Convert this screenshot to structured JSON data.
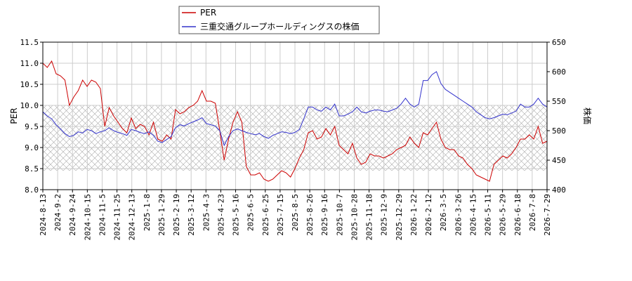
{
  "chart_data": {
    "type": "line",
    "xlabel": "",
    "y_left_label": "PER",
    "y_right_label": "株価",
    "y_left_lim": [
      8.0,
      11.5
    ],
    "y_right_lim": [
      400,
      650
    ],
    "y_left_ticks": [
      "8.0",
      "8.5",
      "9.0",
      "9.5",
      "10.0",
      "10.5",
      "11.0",
      "11.5"
    ],
    "y_right_ticks": [
      "400",
      "450",
      "500",
      "550",
      "600",
      "650"
    ],
    "x_ticks": [
      "2024-8-13",
      "2024-9-2",
      "2024-9-24",
      "2024-10-15",
      "2024-11-5",
      "2024-11-25",
      "2024-12-13",
      "2025-1-8",
      "2025-1-29",
      "2025-2-19",
      "2025-3-12",
      "2025-4-3",
      "2025-4-23",
      "2025-5-16",
      "2025-6-5",
      "2025-6-25",
      "2025-7-15",
      "2025-8-5",
      "2025-8-26",
      "2025-9-16",
      "2025-10-7",
      "2025-10-28",
      "2025-11-18",
      "2025-12-9",
      "2025-12-29",
      "2026-1-22",
      "2026-2-12",
      "2026-3-5",
      "2026-3-26",
      "2026-4-15",
      "2026-5-11",
      "2026-5-29",
      "2026-6-18",
      "2026-7-8",
      "2026-7-29"
    ],
    "grid": true,
    "shaded_band_left": [
      8.45,
      10.0
    ],
    "legend_position": "top-center",
    "series": [
      {
        "name": "PER",
        "axis": "left",
        "color": "#cc0000",
        "points": [
          [
            0,
            11.0
          ],
          [
            1,
            10.9
          ],
          [
            2,
            11.05
          ],
          [
            3,
            10.75
          ],
          [
            4,
            10.7
          ],
          [
            5,
            10.6
          ],
          [
            6,
            10.0
          ],
          [
            7,
            10.2
          ],
          [
            8,
            10.35
          ],
          [
            9,
            10.6
          ],
          [
            10,
            10.45
          ],
          [
            11,
            10.6
          ],
          [
            12,
            10.55
          ],
          [
            13,
            10.4
          ],
          [
            14,
            9.5
          ],
          [
            15,
            9.95
          ],
          [
            16,
            9.75
          ],
          [
            17,
            9.6
          ],
          [
            18,
            9.45
          ],
          [
            19,
            9.35
          ],
          [
            20,
            9.7
          ],
          [
            21,
            9.45
          ],
          [
            22,
            9.55
          ],
          [
            23,
            9.5
          ],
          [
            24,
            9.3
          ],
          [
            25,
            9.6
          ],
          [
            26,
            9.2
          ],
          [
            27,
            9.15
          ],
          [
            28,
            9.3
          ],
          [
            29,
            9.2
          ],
          [
            30,
            9.9
          ],
          [
            31,
            9.8
          ],
          [
            32,
            9.85
          ],
          [
            33,
            9.95
          ],
          [
            34,
            10.0
          ],
          [
            35,
            10.1
          ],
          [
            36,
            10.35
          ],
          [
            37,
            10.1
          ],
          [
            38,
            10.1
          ],
          [
            39,
            10.05
          ],
          [
            40,
            9.4
          ],
          [
            41,
            8.7
          ],
          [
            42,
            9.2
          ],
          [
            43,
            9.6
          ],
          [
            44,
            9.85
          ],
          [
            45,
            9.6
          ],
          [
            46,
            8.55
          ],
          [
            47,
            8.35
          ],
          [
            48,
            8.35
          ],
          [
            49,
            8.4
          ],
          [
            50,
            8.25
          ],
          [
            51,
            8.2
          ],
          [
            52,
            8.25
          ],
          [
            53,
            8.35
          ],
          [
            54,
            8.45
          ],
          [
            55,
            8.4
          ],
          [
            56,
            8.3
          ],
          [
            57,
            8.5
          ],
          [
            58,
            8.75
          ],
          [
            59,
            8.95
          ],
          [
            60,
            9.35
          ],
          [
            61,
            9.4
          ],
          [
            62,
            9.2
          ],
          [
            63,
            9.25
          ],
          [
            64,
            9.45
          ],
          [
            65,
            9.3
          ],
          [
            66,
            9.5
          ],
          [
            67,
            9.05
          ],
          [
            68,
            8.95
          ],
          [
            69,
            8.85
          ],
          [
            70,
            9.1
          ],
          [
            71,
            8.75
          ],
          [
            72,
            8.6
          ],
          [
            73,
            8.65
          ],
          [
            74,
            8.85
          ],
          [
            75,
            8.8
          ],
          [
            76,
            8.8
          ],
          [
            77,
            8.75
          ],
          [
            78,
            8.8
          ],
          [
            79,
            8.85
          ],
          [
            80,
            8.95
          ],
          [
            81,
            9.0
          ],
          [
            82,
            9.05
          ],
          [
            83,
            9.25
          ],
          [
            84,
            9.1
          ],
          [
            85,
            9.0
          ],
          [
            86,
            9.35
          ],
          [
            87,
            9.3
          ],
          [
            88,
            9.45
          ],
          [
            89,
            9.6
          ],
          [
            90,
            9.2
          ],
          [
            91,
            9.0
          ],
          [
            92,
            8.95
          ],
          [
            93,
            8.95
          ],
          [
            94,
            8.8
          ],
          [
            95,
            8.75
          ],
          [
            96,
            8.6
          ],
          [
            97,
            8.5
          ],
          [
            98,
            8.35
          ],
          [
            99,
            8.3
          ],
          [
            100,
            8.25
          ],
          [
            101,
            8.2
          ],
          [
            102,
            8.6
          ],
          [
            103,
            8.7
          ],
          [
            104,
            8.8
          ],
          [
            105,
            8.75
          ],
          [
            106,
            8.85
          ],
          [
            107,
            9.0
          ],
          [
            108,
            9.2
          ],
          [
            109,
            9.2
          ],
          [
            110,
            9.3
          ],
          [
            111,
            9.2
          ],
          [
            112,
            9.5
          ],
          [
            113,
            9.1
          ],
          [
            114,
            9.15
          ]
        ]
      },
      {
        "name": "三重交通グループホールディングスの株価",
        "axis": "right",
        "color": "#3333cc",
        "points": [
          [
            0,
            532
          ],
          [
            1,
            525
          ],
          [
            2,
            520
          ],
          [
            3,
            510
          ],
          [
            4,
            503
          ],
          [
            5,
            495
          ],
          [
            6,
            490
          ],
          [
            7,
            492
          ],
          [
            8,
            498
          ],
          [
            9,
            496
          ],
          [
            10,
            502
          ],
          [
            11,
            500
          ],
          [
            12,
            495
          ],
          [
            13,
            498
          ],
          [
            14,
            500
          ],
          [
            15,
            505
          ],
          [
            16,
            500
          ],
          [
            17,
            497
          ],
          [
            18,
            495
          ],
          [
            19,
            492
          ],
          [
            20,
            502
          ],
          [
            21,
            500
          ],
          [
            22,
            497
          ],
          [
            23,
            495
          ],
          [
            24,
            498
          ],
          [
            25,
            492
          ],
          [
            26,
            482
          ],
          [
            27,
            480
          ],
          [
            28,
            485
          ],
          [
            29,
            490
          ],
          [
            30,
            505
          ],
          [
            31,
            510
          ],
          [
            32,
            508
          ],
          [
            33,
            512
          ],
          [
            34,
            515
          ],
          [
            35,
            518
          ],
          [
            36,
            522
          ],
          [
            37,
            512
          ],
          [
            38,
            510
          ],
          [
            39,
            508
          ],
          [
            40,
            500
          ],
          [
            41,
            475
          ],
          [
            42,
            490
          ],
          [
            43,
            500
          ],
          [
            44,
            503
          ],
          [
            45,
            500
          ],
          [
            46,
            497
          ],
          [
            47,
            495
          ],
          [
            48,
            493
          ],
          [
            49,
            495
          ],
          [
            50,
            490
          ],
          [
            51,
            487
          ],
          [
            52,
            492
          ],
          [
            53,
            495
          ],
          [
            54,
            498
          ],
          [
            55,
            497
          ],
          [
            56,
            495
          ],
          [
            57,
            497
          ],
          [
            58,
            502
          ],
          [
            59,
            520
          ],
          [
            60,
            540
          ],
          [
            61,
            540
          ],
          [
            62,
            535
          ],
          [
            63,
            533
          ],
          [
            64,
            540
          ],
          [
            65,
            535
          ],
          [
            66,
            545
          ],
          [
            67,
            525
          ],
          [
            68,
            525
          ],
          [
            69,
            528
          ],
          [
            70,
            532
          ],
          [
            71,
            540
          ],
          [
            72,
            532
          ],
          [
            73,
            530
          ],
          [
            74,
            533
          ],
          [
            75,
            535
          ],
          [
            76,
            535
          ],
          [
            77,
            533
          ],
          [
            78,
            532
          ],
          [
            79,
            535
          ],
          [
            80,
            538
          ],
          [
            81,
            545
          ],
          [
            82,
            555
          ],
          [
            83,
            545
          ],
          [
            84,
            540
          ],
          [
            85,
            545
          ],
          [
            86,
            585
          ],
          [
            87,
            585
          ],
          [
            88,
            595
          ],
          [
            89,
            600
          ],
          [
            90,
            580
          ],
          [
            91,
            570
          ],
          [
            92,
            565
          ],
          [
            93,
            560
          ],
          [
            94,
            555
          ],
          [
            95,
            550
          ],
          [
            96,
            545
          ],
          [
            97,
            540
          ],
          [
            98,
            532
          ],
          [
            99,
            527
          ],
          [
            100,
            522
          ],
          [
            101,
            520
          ],
          [
            102,
            522
          ],
          [
            103,
            525
          ],
          [
            104,
            528
          ],
          [
            105,
            527
          ],
          [
            106,
            530
          ],
          [
            107,
            533
          ],
          [
            108,
            545
          ],
          [
            109,
            540
          ],
          [
            110,
            540
          ],
          [
            111,
            545
          ],
          [
            112,
            555
          ],
          [
            113,
            545
          ],
          [
            114,
            540
          ]
        ]
      }
    ]
  }
}
